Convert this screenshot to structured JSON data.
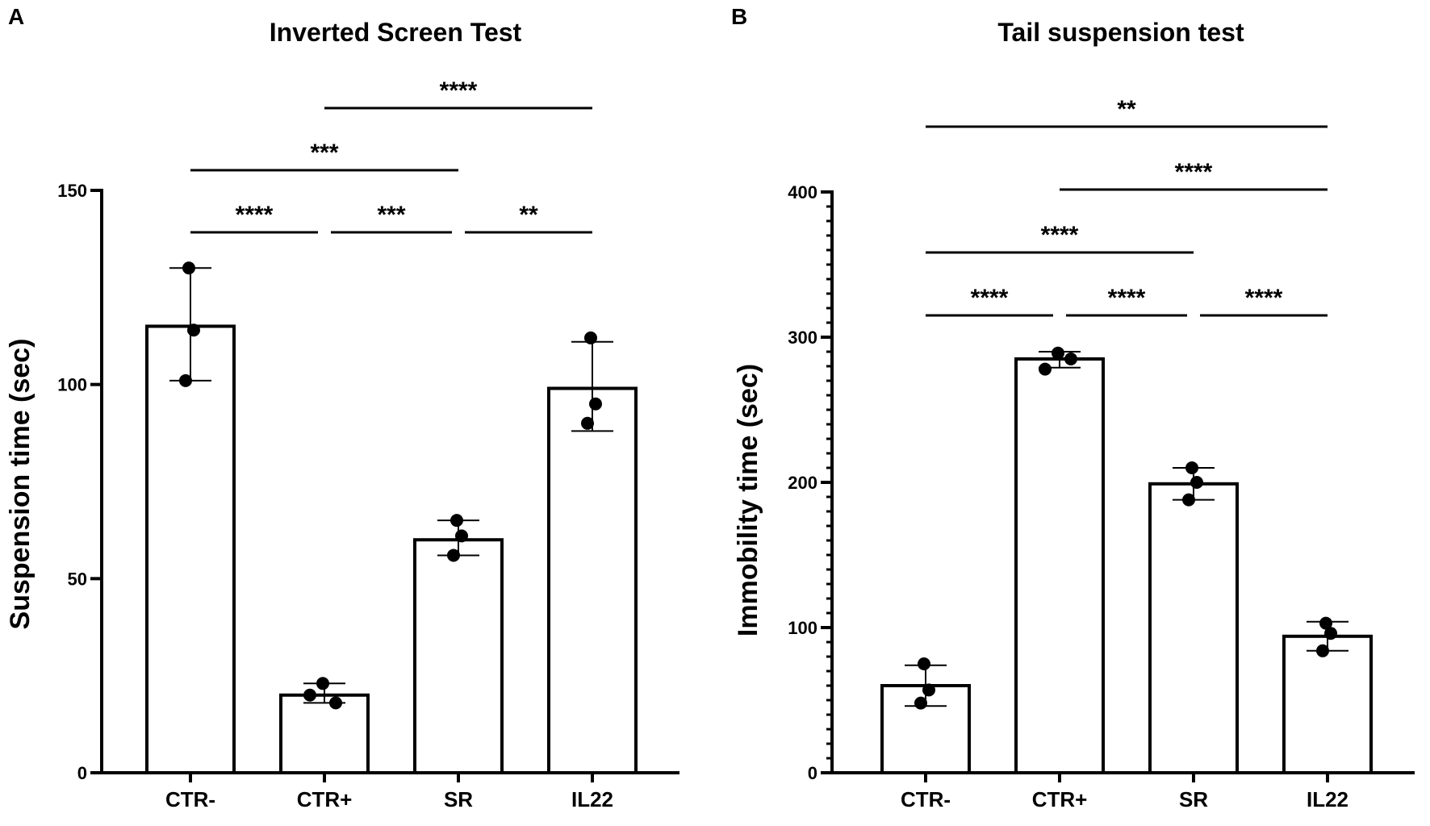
{
  "chart_data": [
    {
      "panel": "A",
      "type": "bar",
      "title": "Inverted Screen Test",
      "xlabel": "",
      "ylabel": "Suspension time (sec)",
      "ylim": [
        0,
        150
      ],
      "yticks": [
        0,
        50,
        100,
        150
      ],
      "minor_ticks": false,
      "categories": [
        "CTR-",
        "CTR+",
        "SR",
        "IL22"
      ],
      "values": [
        115,
        20,
        60,
        99
      ],
      "errors": [
        [
          101,
          130
        ],
        [
          18,
          23
        ],
        [
          56,
          65
        ],
        [
          88,
          111
        ]
      ],
      "points": [
        [
          130,
          114,
          101
        ],
        [
          23,
          18,
          20
        ],
        [
          65,
          61,
          56
        ],
        [
          112,
          95,
          90
        ]
      ],
      "significance": [
        {
          "from": 0,
          "to": 1,
          "label": "****",
          "level": 0
        },
        {
          "from": 1,
          "to": 2,
          "label": "***",
          "level": 0
        },
        {
          "from": 2,
          "to": 3,
          "label": "**",
          "level": 0
        },
        {
          "from": 0,
          "to": 2,
          "label": "***",
          "level": 1
        },
        {
          "from": 1,
          "to": 3,
          "label": "****",
          "level": 2
        }
      ]
    },
    {
      "panel": "B",
      "type": "bar",
      "title": "Tail suspension test",
      "xlabel": "",
      "ylabel": "Immobility time (sec)",
      "ylim": [
        0,
        400
      ],
      "yticks": [
        0,
        100,
        200,
        300,
        400
      ],
      "minor_ticks": true,
      "categories": [
        "CTR-",
        "CTR+",
        "SR",
        "IL22"
      ],
      "values": [
        60,
        285,
        199,
        94
      ],
      "errors": [
        [
          46,
          74
        ],
        [
          279,
          290
        ],
        [
          188,
          210
        ],
        [
          84,
          104
        ]
      ],
      "points": [
        [
          75,
          57,
          48
        ],
        [
          289,
          285,
          278
        ],
        [
          210,
          200,
          188
        ],
        [
          103,
          96,
          84
        ]
      ],
      "significance": [
        {
          "from": 0,
          "to": 1,
          "label": "****",
          "level": 0
        },
        {
          "from": 1,
          "to": 2,
          "label": "****",
          "level": 0
        },
        {
          "from": 2,
          "to": 3,
          "label": "****",
          "level": 0
        },
        {
          "from": 0,
          "to": 2,
          "label": "****",
          "level": 1
        },
        {
          "from": 1,
          "to": 3,
          "label": "****",
          "level": 2
        },
        {
          "from": 0,
          "to": 3,
          "label": "**",
          "level": 3
        }
      ]
    }
  ]
}
